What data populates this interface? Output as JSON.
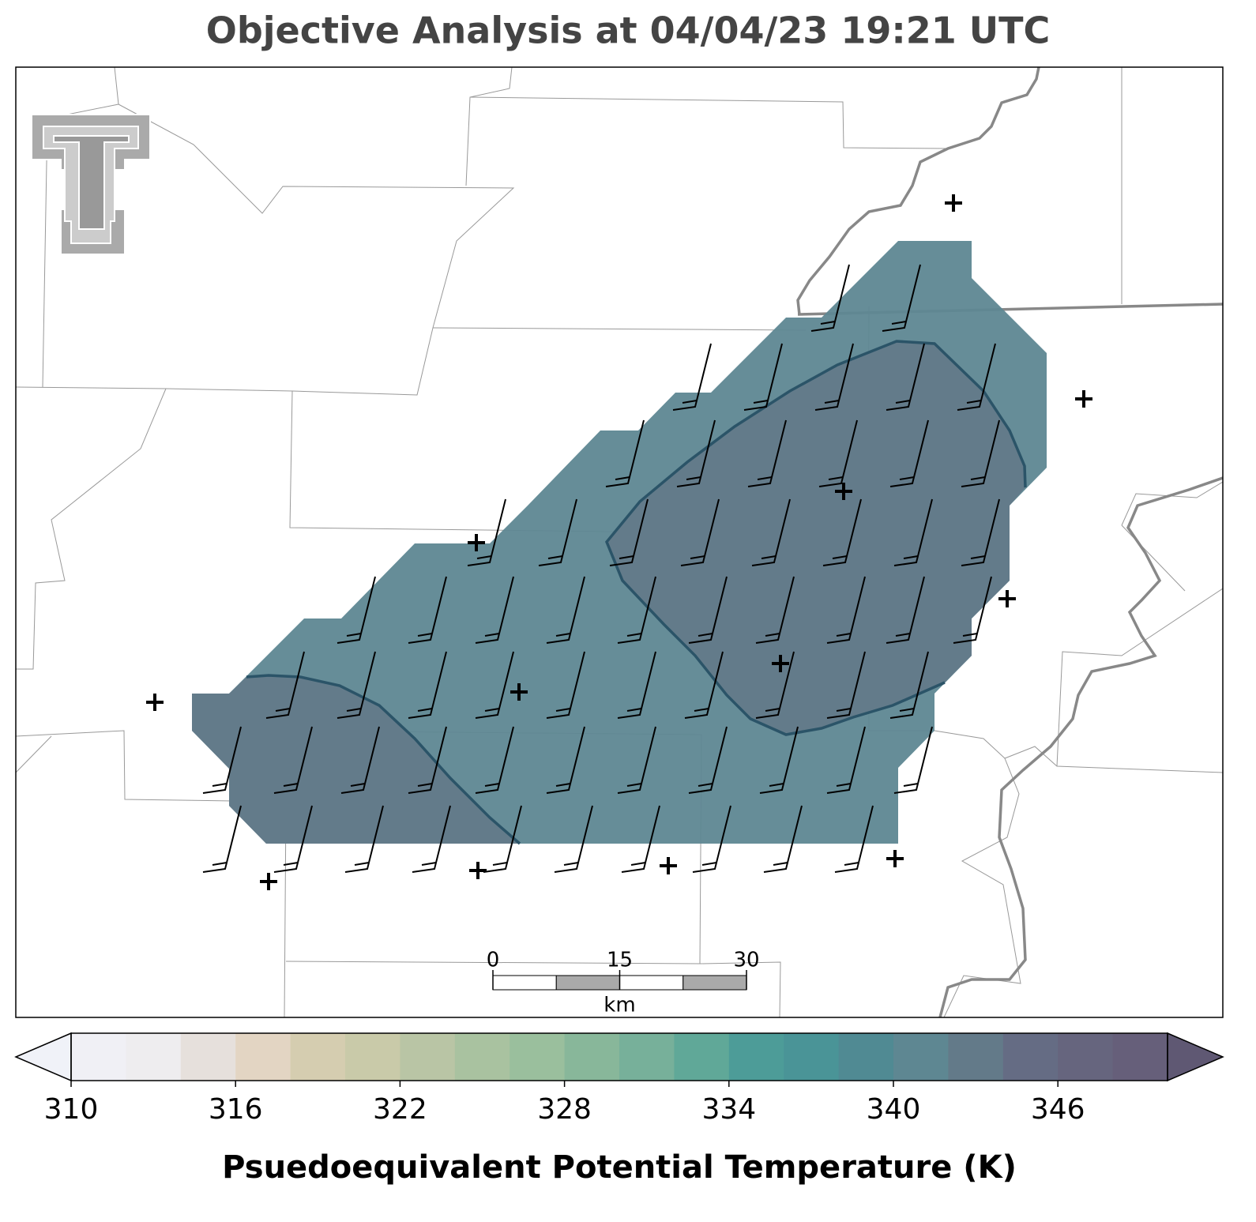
{
  "chart_data": {
    "type": "map",
    "title": "Objective Analysis at 04/04/23 19:21 UTC",
    "filled_levels": [
      340,
      342
    ],
    "colorbar": {
      "label": "Psuedoequivalent Potential Temperature (K)",
      "levels": [
        310,
        312,
        314,
        316,
        318,
        320,
        322,
        324,
        326,
        328,
        330,
        332,
        334,
        336,
        338,
        340,
        342,
        344,
        346,
        348,
        350
      ],
      "colors": [
        "#f0f0f5",
        "#eeedef",
        "#e6e0dc",
        "#e3d5c3",
        "#d5cdb0",
        "#c9caa9",
        "#b9c5a5",
        "#a9c2a0",
        "#9abf9d",
        "#88b79a",
        "#77b09a",
        "#60a898",
        "#4d9c98",
        "#4a9497",
        "#508a93",
        "#5e8792",
        "#637a89",
        "#656c84",
        "#66657e",
        "#665f7a"
      ],
      "under_color": "#f0f2f8",
      "over_color": "#5f5873",
      "ticks": [
        310,
        316,
        322,
        328,
        334,
        340,
        346
      ]
    },
    "scale_bar": {
      "ticks": [
        0,
        15,
        30
      ],
      "unit": "km"
    }
  }
}
